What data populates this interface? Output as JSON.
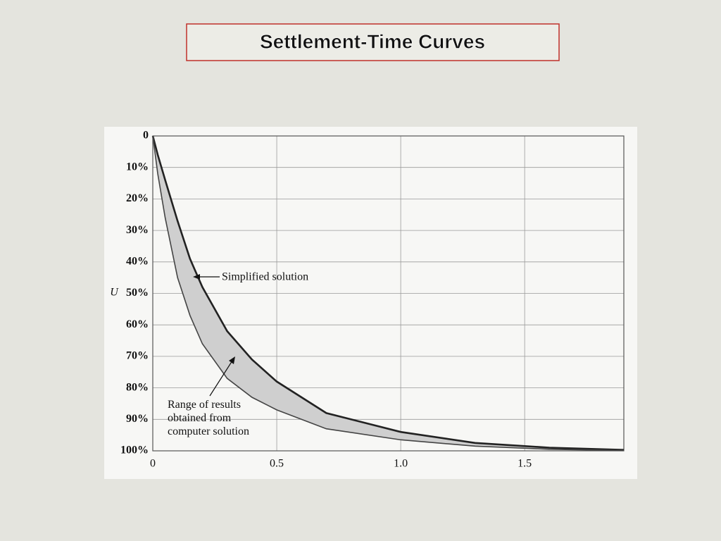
{
  "chart_data": {
    "type": "line",
    "title": "Settlement-Time Curves",
    "ylabel": "U",
    "x": [
      0,
      0.02,
      0.05,
      0.1,
      0.15,
      0.2,
      0.3,
      0.4,
      0.5,
      0.7,
      1.0,
      1.3,
      1.6,
      1.9
    ],
    "series": [
      {
        "name": "Simplified solution",
        "color": "#222222",
        "values": [
          0,
          6,
          14,
          27,
          39,
          48,
          62,
          71,
          78,
          88,
          94,
          97.5,
          99,
          99.7
        ]
      },
      {
        "name": "Range of results obtained from computer solution",
        "color": "#444444",
        "values": [
          0,
          12,
          26,
          45,
          57,
          66,
          77,
          83,
          87,
          93,
          96.5,
          98.5,
          99.5,
          99.9
        ]
      }
    ],
    "band_color": "#cfcfcf",
    "xlim": [
      0,
      1.9
    ],
    "xticks": [
      0,
      0.5,
      {
        "value": 1,
        "label": "1.0"
      },
      1.5
    ],
    "ylim": [
      100,
      0
    ],
    "yticks": [
      0,
      {
        "value": 10,
        "label": "10%"
      },
      {
        "value": 20,
        "label": "20%"
      },
      {
        "value": 30,
        "label": "30%"
      },
      {
        "value": 40,
        "label": "40%"
      },
      {
        "value": 50,
        "label": "50%"
      },
      {
        "value": 60,
        "label": "60%"
      },
      {
        "value": 70,
        "label": "70%"
      },
      {
        "value": 80,
        "label": "80%"
      },
      {
        "value": 90,
        "label": "90%"
      },
      {
        "value": 100,
        "label": "100%"
      }
    ],
    "grid": true
  }
}
